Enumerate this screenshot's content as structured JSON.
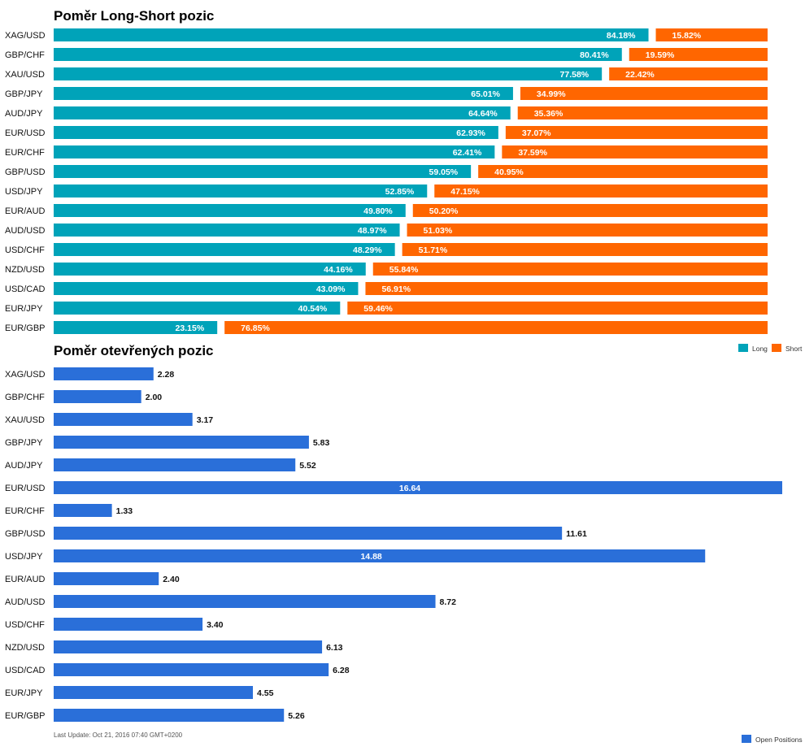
{
  "colors": {
    "long": "#00A3B9",
    "short": "#FF6600",
    "open": "#2A6FD9"
  },
  "chart_data": [
    {
      "type": "bar",
      "stacked": true,
      "orientation": "horizontal",
      "title": "Poměr Long-Short pozic",
      "categories": [
        "XAG/USD",
        "GBP/CHF",
        "XAU/USD",
        "GBP/JPY",
        "AUD/JPY",
        "EUR/USD",
        "EUR/CHF",
        "GBP/USD",
        "USD/JPY",
        "EUR/AUD",
        "AUD/USD",
        "USD/CHF",
        "NZD/USD",
        "USD/CAD",
        "EUR/JPY",
        "EUR/GBP"
      ],
      "series": [
        {
          "name": "Long",
          "values": [
            84.18,
            80.41,
            77.58,
            65.01,
            64.64,
            62.93,
            62.41,
            59.05,
            52.85,
            49.8,
            48.97,
            48.29,
            44.16,
            43.09,
            40.54,
            23.15
          ],
          "labels": [
            "84.18%",
            "80.41%",
            "77.58%",
            "65.01%",
            "64.64%",
            "62.93%",
            "62.41%",
            "59.05%",
            "52.85%",
            "49.80%",
            "48.97%",
            "48.29%",
            "44.16%",
            "43.09%",
            "40.54%",
            "23.15%"
          ]
        },
        {
          "name": "Short",
          "values": [
            15.82,
            19.59,
            22.42,
            34.99,
            35.36,
            37.07,
            37.59,
            40.95,
            47.15,
            50.2,
            51.03,
            51.71,
            55.84,
            56.91,
            59.46,
            76.85
          ],
          "labels": [
            "15.82%",
            "19.59%",
            "22.42%",
            "34.99%",
            "35.36%",
            "37.07%",
            "37.59%",
            "40.95%",
            "47.15%",
            "50.20%",
            "51.03%",
            "51.71%",
            "55.84%",
            "56.91%",
            "59.46%",
            "76.85%"
          ]
        }
      ],
      "xlim": [
        0,
        100
      ],
      "legend": "bottom-right",
      "grid": false
    },
    {
      "type": "bar",
      "orientation": "horizontal",
      "title": "Poměr otevřených pozic",
      "categories": [
        "XAG/USD",
        "GBP/CHF",
        "XAU/USD",
        "GBP/JPY",
        "AUD/JPY",
        "EUR/USD",
        "EUR/CHF",
        "GBP/USD",
        "USD/JPY",
        "EUR/AUD",
        "AUD/USD",
        "USD/CHF",
        "NZD/USD",
        "USD/CAD",
        "EUR/JPY",
        "EUR/GBP"
      ],
      "series": [
        {
          "name": "Open Positions",
          "values": [
            2.28,
            2.0,
            3.17,
            5.83,
            5.52,
            16.64,
            1.33,
            11.61,
            14.88,
            2.4,
            8.72,
            3.4,
            6.13,
            6.28,
            4.55,
            5.26
          ],
          "labels": [
            "2.28",
            "2.00",
            "3.17",
            "5.83",
            "5.52",
            "16.64",
            "1.33",
            "11.61",
            "14.88",
            "2.40",
            "8.72",
            "3.40",
            "6.13",
            "6.28",
            "4.55",
            "5.26"
          ]
        }
      ],
      "xlim": [
        0,
        16.64
      ],
      "legend": "bottom-right",
      "grid": false
    }
  ],
  "footer": {
    "last_update": "Last Update: Oct 21, 2016 07:40 GMT+0200"
  }
}
